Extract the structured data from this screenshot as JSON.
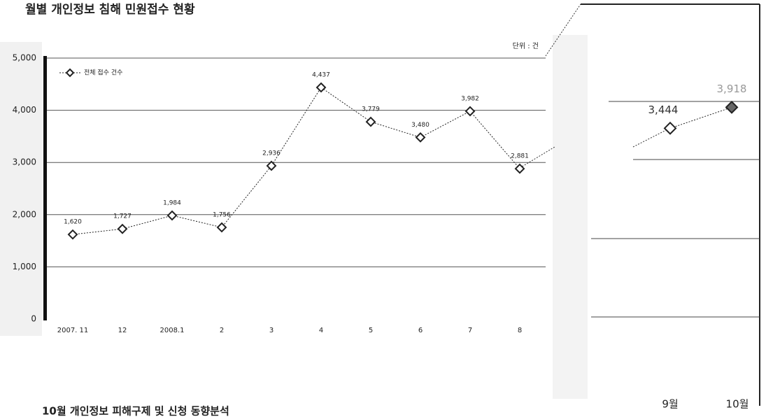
{
  "chart_data": [
    {
      "type": "line",
      "title": "월별 개인정보 침해 민원접수 현황",
      "unit_label": "단위 : 건",
      "caption": "10월 개인정보 피해구제 및 신청 동향분석",
      "categories": [
        "2007. 11",
        "12",
        "2008.1",
        "2",
        "3",
        "4",
        "5",
        "6",
        "7",
        "8"
      ],
      "series": [
        {
          "name": "전체 접수 건수",
          "color": "#222222",
          "values": [
            1620,
            1727,
            1984,
            1756,
            2936,
            4437,
            3779,
            3480,
            3982,
            2881
          ],
          "value_labels": [
            "1,620",
            "1,727",
            "1,984",
            "1,756",
            "2,936",
            "4,437",
            "3,779",
            "3,480",
            "3,982",
            "2,881"
          ]
        }
      ],
      "ylim": [
        0,
        5000
      ],
      "yticks": [
        0,
        {
          "value": 1000,
          "label": "1,000"
        },
        {
          "value": 2000,
          "label": "2,000"
        },
        {
          "value": 3000,
          "label": "3,000"
        },
        {
          "value": 4000,
          "label": "4,000"
        },
        {
          "value": 5000,
          "label": "5,000"
        }
      ],
      "grid": true,
      "legend": "top-left"
    },
    {
      "type": "line",
      "categories": [
        "9월",
        "10월"
      ],
      "series": [
        {
          "color": "#222222",
          "values": [
            3444,
            3918
          ],
          "value_labels": [
            "3,444",
            "3,918"
          ]
        }
      ],
      "ylim": [
        0,
        5000
      ]
    }
  ]
}
